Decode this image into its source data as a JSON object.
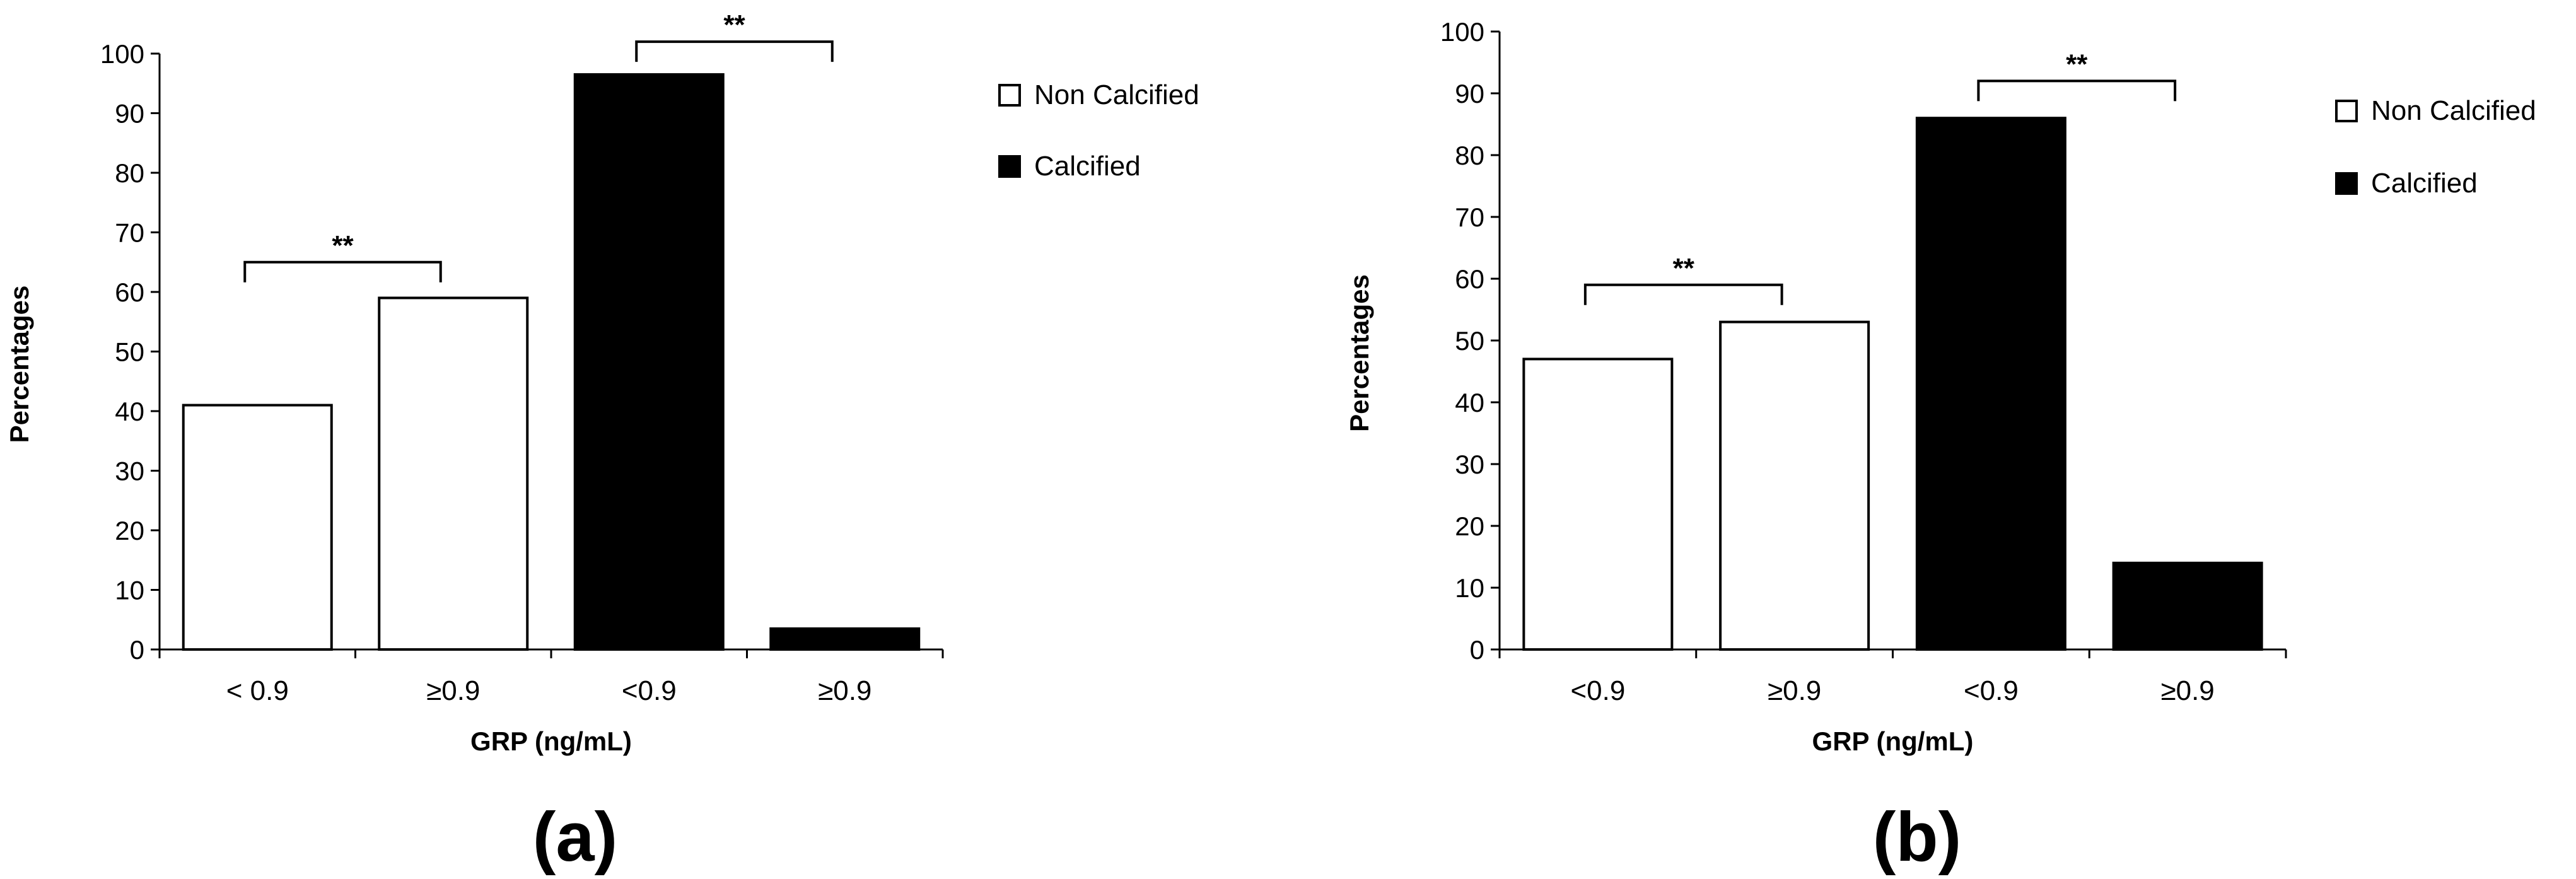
{
  "chart_data": [
    {
      "type": "bar",
      "panel_label": "(a)",
      "categories": [
        "< 0.9",
        "≥0.9",
        "<0.9",
        "≥0.9"
      ],
      "values": [
        41,
        59,
        96.5,
        3.5
      ],
      "fill_colors": [
        "#ffffff",
        "#ffffff",
        "#000000",
        "#000000"
      ],
      "xlabel": "GRP (ng/mL)",
      "ylabel": "Percentages",
      "ylim": [
        0,
        100
      ],
      "yticks": [
        0,
        10,
        20,
        30,
        40,
        50,
        60,
        70,
        80,
        90,
        100
      ],
      "grid": false,
      "legend": {
        "placement": "right",
        "entries": [
          {
            "label": "Non Calcified",
            "color": "#ffffff"
          },
          {
            "label": "Calcified",
            "color": "#000000"
          }
        ]
      },
      "annotations": [
        {
          "text": "**",
          "from_category": 0,
          "to_category": 1,
          "level": 65
        },
        {
          "text": "**",
          "from_category": 2,
          "to_category": 3,
          "level": 102
        }
      ]
    },
    {
      "type": "bar",
      "panel_label": "(b)",
      "categories": [
        "<0.9",
        "≥0.9",
        "<0.9",
        "≥0.9"
      ],
      "values": [
        47,
        53,
        86,
        14
      ],
      "fill_colors": [
        "#ffffff",
        "#ffffff",
        "#000000",
        "#000000"
      ],
      "xlabel": "GRP (ng/mL)",
      "ylabel": "Percentages",
      "ylim": [
        0,
        100
      ],
      "yticks": [
        0,
        10,
        20,
        30,
        40,
        50,
        60,
        70,
        80,
        90,
        100
      ],
      "grid": false,
      "legend": {
        "placement": "right",
        "entries": [
          {
            "label": "Non Calcified",
            "color": "#ffffff"
          },
          {
            "label": "Calcified",
            "color": "#000000"
          }
        ]
      },
      "annotations": [
        {
          "text": "**",
          "from_category": 0,
          "to_category": 1,
          "level": 59
        },
        {
          "text": "**",
          "from_category": 2,
          "to_category": 3,
          "level": 92
        }
      ]
    }
  ]
}
